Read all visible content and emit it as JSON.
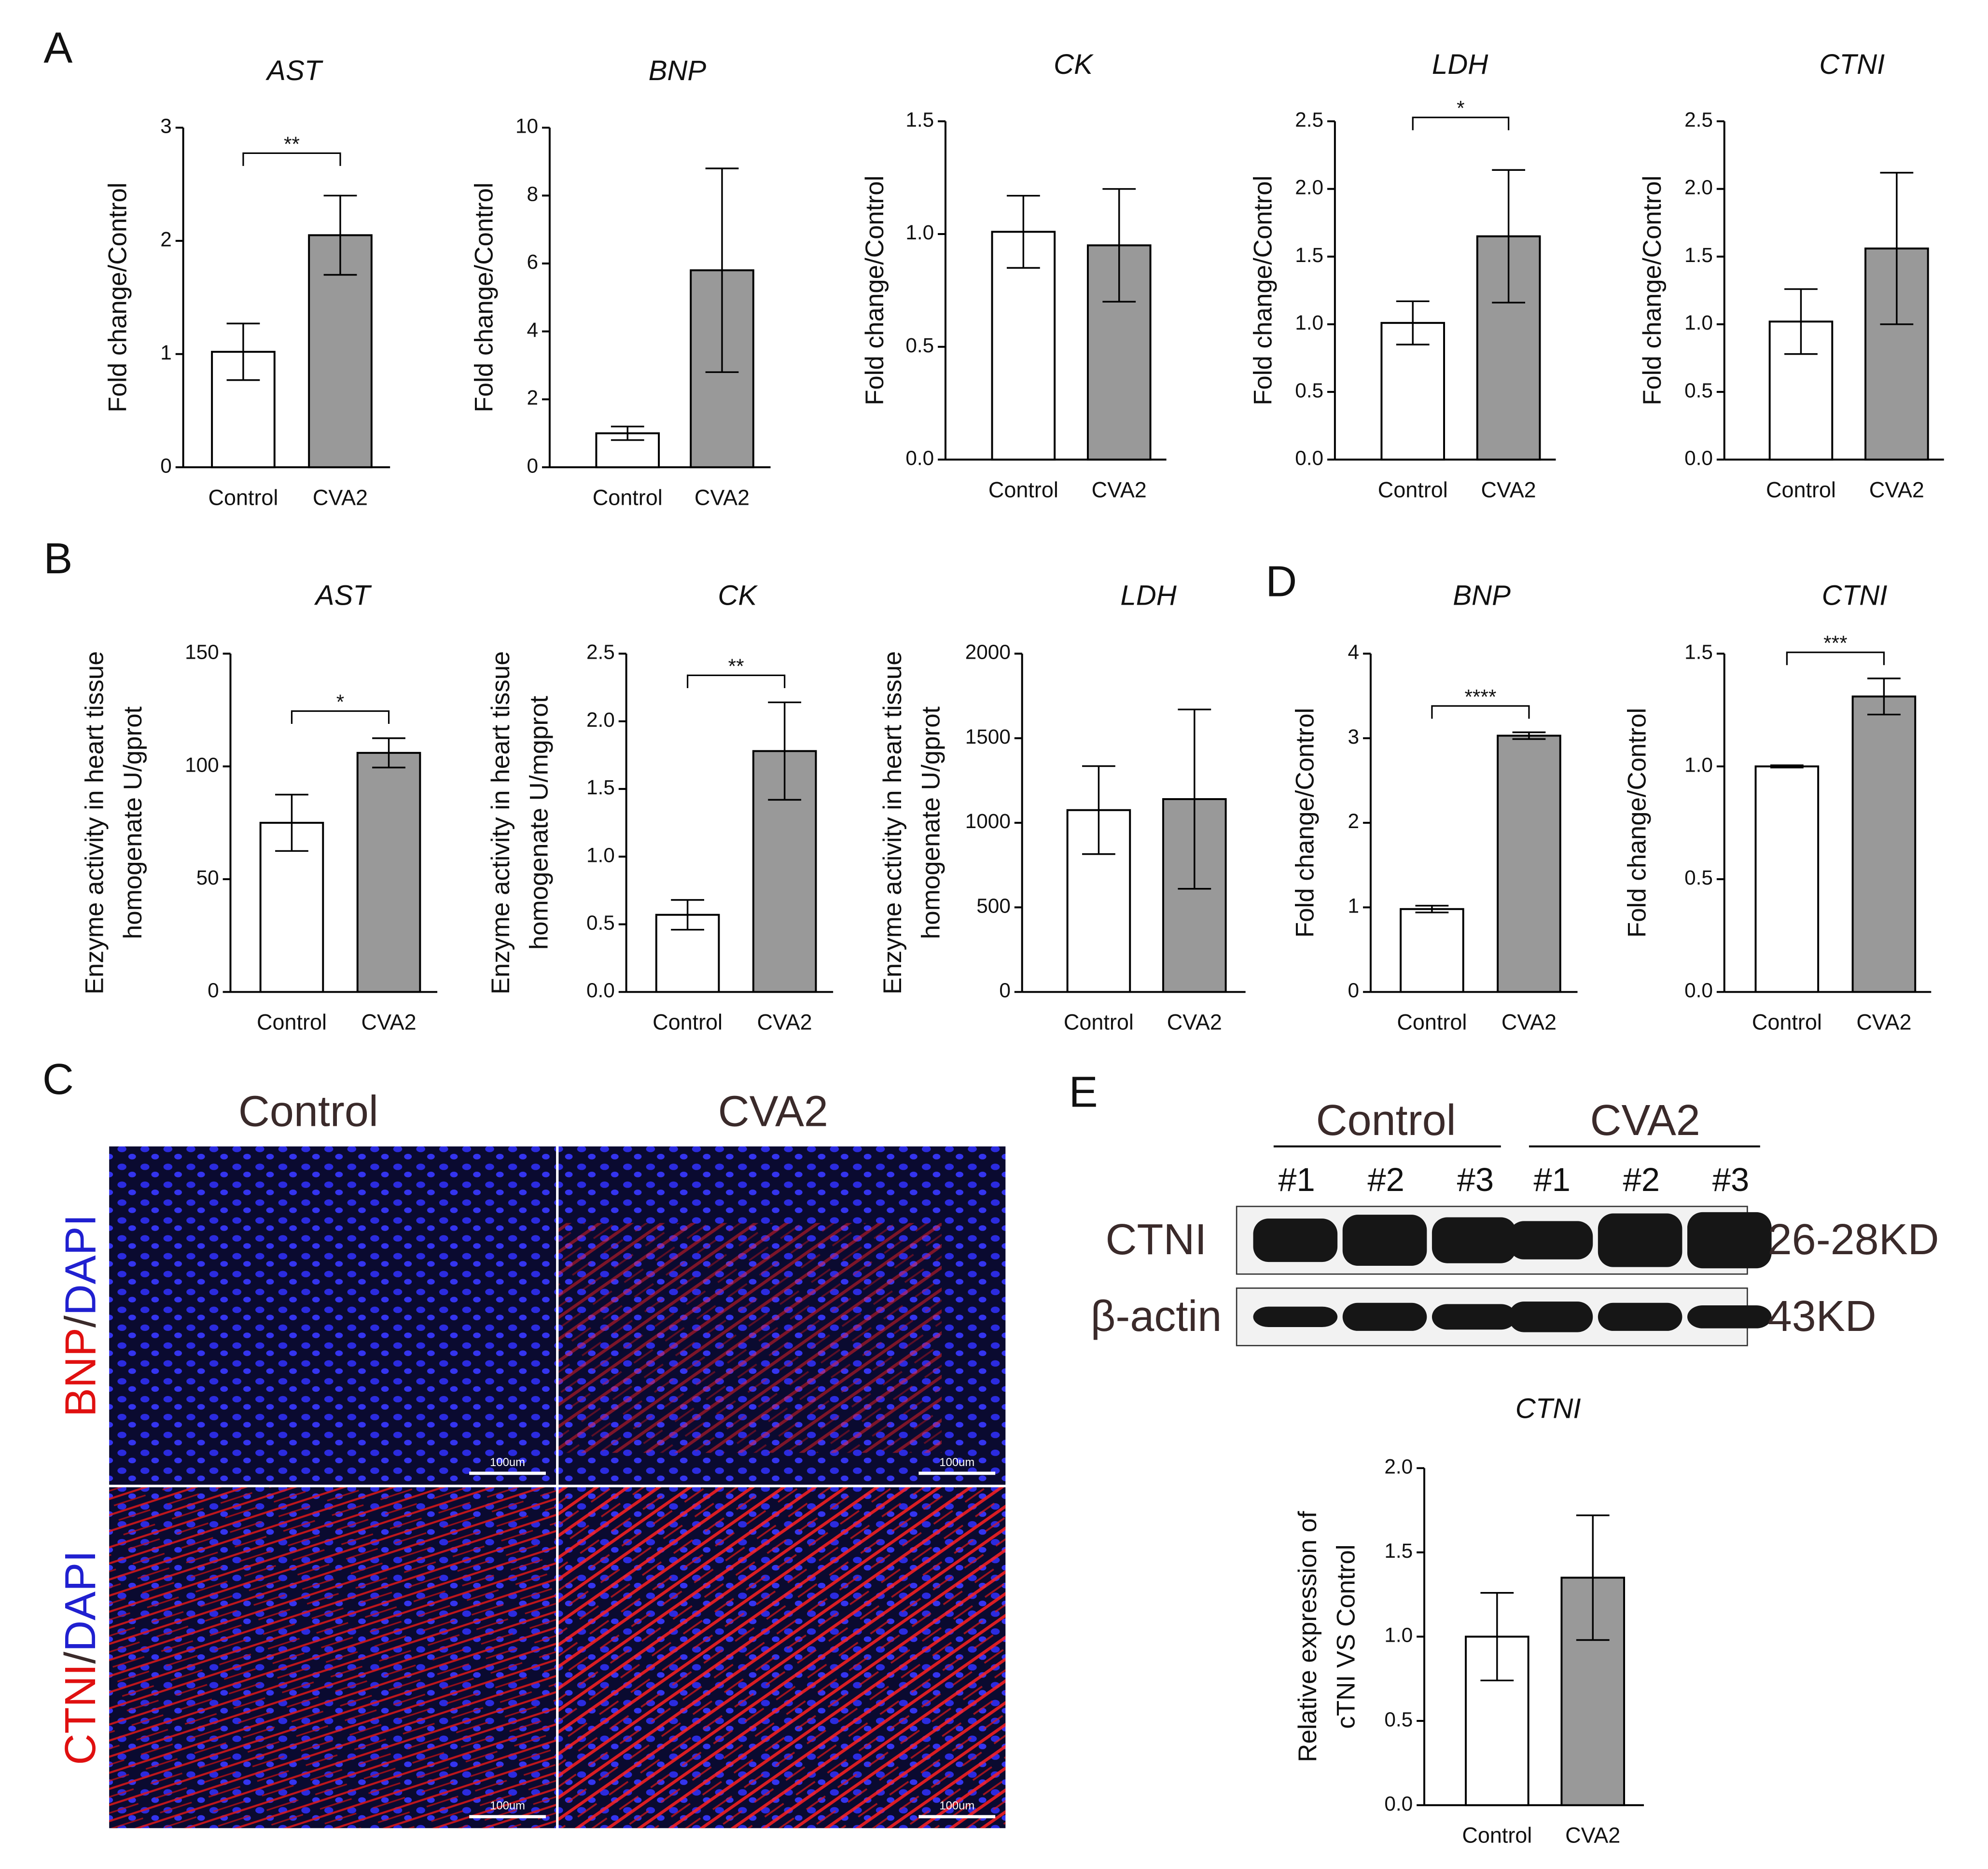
{
  "panel_labels": [
    "A",
    "B",
    "C",
    "D",
    "E"
  ],
  "chart_data": [
    {
      "type": "bar",
      "title": "AST",
      "ylabel": "Fold change/Control",
      "categories": [
        "Control",
        "CVA2"
      ],
      "values": [
        1.02,
        2.05
      ],
      "errors": [
        0.25,
        0.35
      ],
      "colors": [
        "#ffffff",
        "#999999"
      ],
      "ylim": [
        0,
        3
      ],
      "yticks": [
        0,
        1,
        2,
        3
      ],
      "significance": "**"
    },
    {
      "type": "bar",
      "title": "BNP",
      "ylabel": "Fold change/Control",
      "categories": [
        "Control",
        "CVA2"
      ],
      "values": [
        1.0,
        5.8
      ],
      "errors": [
        0.2,
        3.0
      ],
      "colors": [
        "#ffffff",
        "#999999"
      ],
      "ylim": [
        0,
        10
      ],
      "yticks": [
        0,
        2,
        4,
        6,
        8,
        10
      ]
    },
    {
      "type": "bar",
      "title": "CK",
      "ylabel": "Fold change/Control",
      "categories": [
        "Control",
        "CVA2"
      ],
      "values": [
        1.01,
        0.95
      ],
      "errors": [
        0.16,
        0.25
      ],
      "colors": [
        "#ffffff",
        "#999999"
      ],
      "ylim": [
        0,
        1.5
      ],
      "yticks": [
        {
          "value": 0,
          "label": "0.0"
        },
        0.5,
        {
          "value": 1,
          "label": "1.0"
        },
        1.5
      ]
    },
    {
      "type": "bar",
      "title": "LDH",
      "ylabel": "Fold change/Control",
      "categories": [
        "Control",
        "CVA2"
      ],
      "values": [
        1.01,
        1.65
      ],
      "errors": [
        0.16,
        0.49
      ],
      "colors": [
        "#ffffff",
        "#999999"
      ],
      "ylim": [
        0,
        2.5
      ],
      "yticks": [
        {
          "value": 0,
          "label": "0.0"
        },
        0.5,
        {
          "value": 1,
          "label": "1.0"
        },
        1.5,
        {
          "value": 2,
          "label": "2.0"
        },
        2.5
      ],
      "significance": "*"
    },
    {
      "type": "bar",
      "title": "CTNI",
      "ylabel": "Fold change/Control",
      "categories": [
        "Control",
        "CVA2"
      ],
      "values": [
        1.02,
        1.56
      ],
      "errors": [
        0.24,
        0.56
      ],
      "colors": [
        "#ffffff",
        "#999999"
      ],
      "ylim": [
        0,
        2.5
      ],
      "yticks": [
        {
          "value": 0,
          "label": "0.0"
        },
        0.5,
        {
          "value": 1,
          "label": "1.0"
        },
        1.5,
        {
          "value": 2,
          "label": "2.0"
        },
        2.5
      ]
    },
    {
      "type": "bar",
      "title": "AST",
      "ylabel": [
        "Enzyme activity in heart tissue",
        "homogenate U/gprot"
      ],
      "categories": [
        "Control",
        "CVA2"
      ],
      "values": [
        75,
        106
      ],
      "errors": [
        12.5,
        6.5
      ],
      "colors": [
        "#ffffff",
        "#999999"
      ],
      "ylim": [
        0,
        150
      ],
      "yticks": [
        0,
        50,
        100,
        150
      ],
      "significance": "*"
    },
    {
      "type": "bar",
      "title": "CK",
      "ylabel": [
        "Enzyme activity in heart tissue",
        "homogenate U/mgprot"
      ],
      "categories": [
        "Control",
        "CVA2"
      ],
      "values": [
        0.57,
        1.78
      ],
      "errors": [
        0.11,
        0.36
      ],
      "colors": [
        "#ffffff",
        "#999999"
      ],
      "ylim": [
        0,
        2.5
      ],
      "yticks": [
        {
          "value": 0,
          "label": "0.0"
        },
        0.5,
        {
          "value": 1,
          "label": "1.0"
        },
        1.5,
        {
          "value": 2,
          "label": "2.0"
        },
        2.5
      ],
      "significance": "**"
    },
    {
      "type": "bar",
      "title": "LDH",
      "ylabel": [
        "Enzyme activity in heart tissue",
        "homogenate U/gprot"
      ],
      "categories": [
        "Control",
        "CVA2"
      ],
      "values": [
        1075,
        1140
      ],
      "errors": [
        260,
        530
      ],
      "colors": [
        "#ffffff",
        "#999999"
      ],
      "ylim": [
        0,
        2000
      ],
      "yticks": [
        0,
        500,
        1000,
        1500,
        2000
      ]
    },
    {
      "type": "bar",
      "title": "BNP",
      "ylabel": "Fold change/Control",
      "categories": [
        "Control",
        "CVA2"
      ],
      "values": [
        0.98,
        3.03
      ],
      "errors": [
        0.04,
        0.04
      ],
      "colors": [
        "#ffffff",
        "#999999"
      ],
      "ylim": [
        0,
        4
      ],
      "yticks": [
        0,
        1,
        2,
        3,
        4
      ],
      "significance": "****"
    },
    {
      "type": "bar",
      "title": "CTNI",
      "ylabel": "Fold change/Control",
      "categories": [
        "Control",
        "CVA2"
      ],
      "values": [
        1.0,
        1.31
      ],
      "errors": [
        0.005,
        0.08
      ],
      "colors": [
        "#ffffff",
        "#999999"
      ],
      "ylim": [
        0,
        1.5
      ],
      "yticks": [
        {
          "value": 0,
          "label": "0.0"
        },
        0.5,
        {
          "value": 1,
          "label": "1.0"
        },
        1.5
      ],
      "significance": "***"
    },
    {
      "type": "bar",
      "title": "CTNI",
      "ylabel": [
        "Relative expression of",
        "cTNI VS Control"
      ],
      "categories": [
        "Control",
        "CVA2"
      ],
      "values": [
        1.0,
        1.35
      ],
      "errors": [
        0.26,
        0.37
      ],
      "colors": [
        "#ffffff",
        "#999999"
      ],
      "ylim": [
        0,
        2
      ],
      "yticks": [
        {
          "value": 0,
          "label": "0.0"
        },
        0.5,
        {
          "value": 1,
          "label": "1.0"
        },
        1.5,
        {
          "value": 2,
          "label": "2.0"
        }
      ]
    }
  ],
  "panel_c": {
    "columns": [
      "Control",
      "CVA2"
    ],
    "rows": [
      [
        "BNP",
        "/",
        "DAPI"
      ],
      [
        "CTNI",
        "/",
        "DAPI"
      ]
    ],
    "scale_bar": "100um"
  },
  "panel_e": {
    "groups": [
      "Control",
      "CVA2"
    ],
    "lanes": [
      "#1",
      "#2",
      "#3",
      "#1",
      "#2",
      "#3"
    ],
    "rows": [
      "CTNI",
      "β-actin"
    ],
    "sizes": [
      "26-28KD",
      "43KD"
    ]
  }
}
